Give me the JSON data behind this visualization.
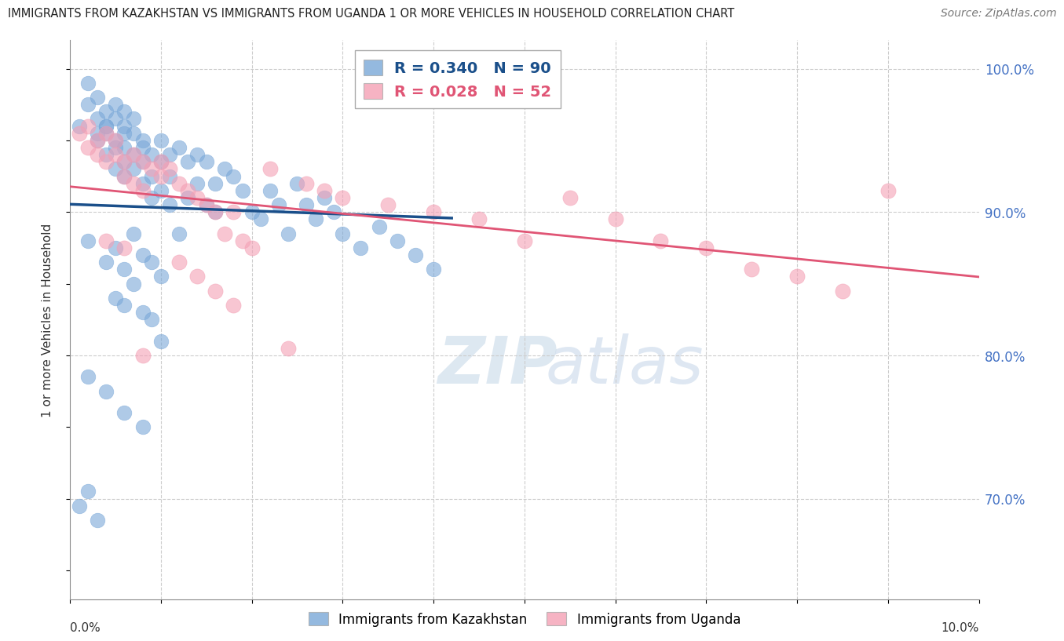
{
  "title": "IMMIGRANTS FROM KAZAKHSTAN VS IMMIGRANTS FROM UGANDA 1 OR MORE VEHICLES IN HOUSEHOLD CORRELATION CHART",
  "source": "Source: ZipAtlas.com",
  "ylabel": "1 or more Vehicles in Household",
  "x_range": [
    0.0,
    0.1
  ],
  "y_range": [
    63,
    102
  ],
  "R_kaz": 0.34,
  "N_kaz": 90,
  "R_uga": 0.028,
  "N_uga": 52,
  "color_kaz": "#7aa8d8",
  "color_uga": "#f4a0b5",
  "line_color_kaz": "#1a4f8a",
  "line_color_uga": "#e05575",
  "background_color": "#ffffff",
  "kaz_x": [
    0.001,
    0.002,
    0.002,
    0.003,
    0.003,
    0.003,
    0.004,
    0.004,
    0.004,
    0.004,
    0.005,
    0.005,
    0.005,
    0.005,
    0.005,
    0.006,
    0.006,
    0.006,
    0.006,
    0.006,
    0.006,
    0.007,
    0.007,
    0.007,
    0.007,
    0.008,
    0.008,
    0.008,
    0.008,
    0.009,
    0.009,
    0.009,
    0.01,
    0.01,
    0.01,
    0.011,
    0.011,
    0.011,
    0.012,
    0.012,
    0.013,
    0.013,
    0.014,
    0.014,
    0.015,
    0.015,
    0.016,
    0.016,
    0.017,
    0.018,
    0.019,
    0.02,
    0.021,
    0.022,
    0.023,
    0.024,
    0.025,
    0.026,
    0.027,
    0.028,
    0.029,
    0.03,
    0.032,
    0.034,
    0.036,
    0.038,
    0.04,
    0.002,
    0.003,
    0.004,
    0.005,
    0.006,
    0.007,
    0.008,
    0.009,
    0.01,
    0.001,
    0.002,
    0.003,
    0.004,
    0.005,
    0.006,
    0.007,
    0.008,
    0.009,
    0.01,
    0.002,
    0.004,
    0.006,
    0.008
  ],
  "kaz_y": [
    96.0,
    97.5,
    99.0,
    96.5,
    98.0,
    95.0,
    97.0,
    96.0,
    95.5,
    94.0,
    96.5,
    95.0,
    94.5,
    93.0,
    97.5,
    96.0,
    94.5,
    93.5,
    95.5,
    92.5,
    97.0,
    95.5,
    94.0,
    96.5,
    93.0,
    95.0,
    93.5,
    92.0,
    94.5,
    94.0,
    92.5,
    91.0,
    95.0,
    93.5,
    91.5,
    94.0,
    92.5,
    90.5,
    94.5,
    88.5,
    93.5,
    91.0,
    94.0,
    92.0,
    90.5,
    93.5,
    92.0,
    90.0,
    93.0,
    92.5,
    91.5,
    90.0,
    89.5,
    91.5,
    90.5,
    88.5,
    92.0,
    90.5,
    89.5,
    91.0,
    90.0,
    88.5,
    87.5,
    89.0,
    88.0,
    87.0,
    86.0,
    88.0,
    95.5,
    96.0,
    84.0,
    83.5,
    88.5,
    87.0,
    86.5,
    85.5,
    69.5,
    70.5,
    68.5,
    86.5,
    87.5,
    86.0,
    85.0,
    83.0,
    82.5,
    81.0,
    78.5,
    77.5,
    76.0,
    75.0
  ],
  "uga_x": [
    0.001,
    0.002,
    0.003,
    0.003,
    0.004,
    0.004,
    0.005,
    0.005,
    0.006,
    0.006,
    0.007,
    0.007,
    0.008,
    0.008,
    0.009,
    0.01,
    0.011,
    0.012,
    0.013,
    0.014,
    0.015,
    0.016,
    0.017,
    0.018,
    0.019,
    0.02,
    0.022,
    0.024,
    0.026,
    0.028,
    0.03,
    0.035,
    0.04,
    0.045,
    0.05,
    0.055,
    0.06,
    0.065,
    0.07,
    0.075,
    0.08,
    0.085,
    0.09,
    0.002,
    0.004,
    0.006,
    0.008,
    0.01,
    0.012,
    0.014,
    0.016,
    0.018
  ],
  "uga_y": [
    95.5,
    96.0,
    95.0,
    94.0,
    95.5,
    93.5,
    95.0,
    94.0,
    93.5,
    92.5,
    94.0,
    92.0,
    93.5,
    91.5,
    93.0,
    92.5,
    93.0,
    92.0,
    91.5,
    91.0,
    90.5,
    90.0,
    88.5,
    90.0,
    88.0,
    87.5,
    93.0,
    80.5,
    92.0,
    91.5,
    91.0,
    90.5,
    90.0,
    89.5,
    88.0,
    91.0,
    89.5,
    88.0,
    87.5,
    86.0,
    85.5,
    84.5,
    91.5,
    94.5,
    88.0,
    87.5,
    80.0,
    93.5,
    86.5,
    85.5,
    84.5,
    83.5
  ]
}
